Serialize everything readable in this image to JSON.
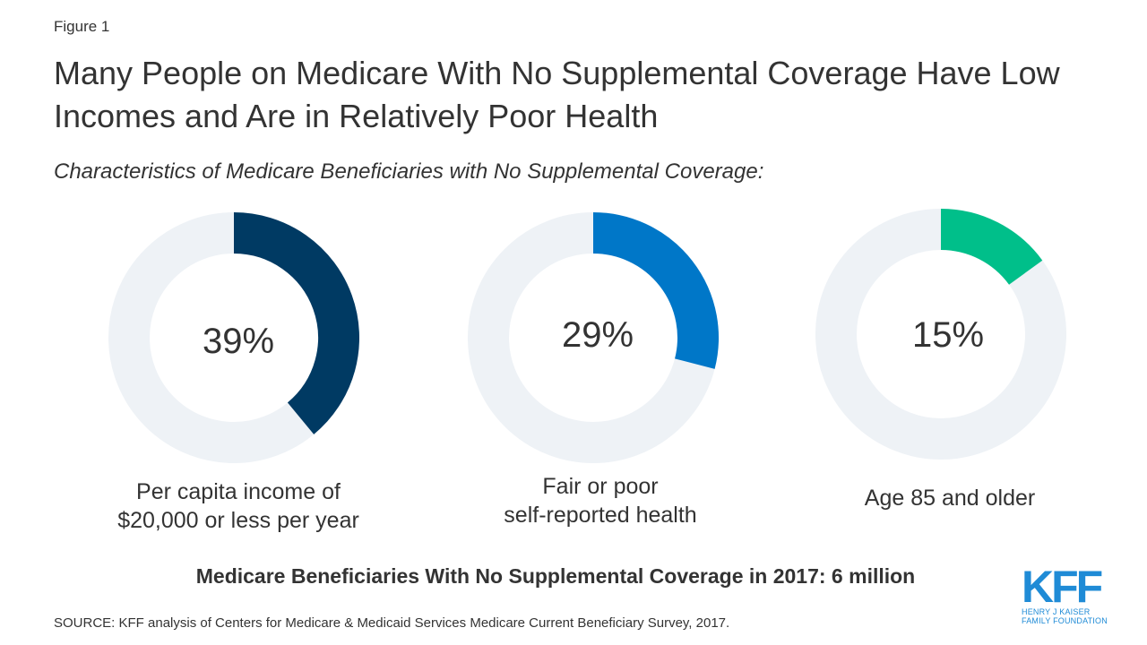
{
  "figure_label": "Figure 1",
  "title": "Many People on Medicare With No Supplemental Coverage Have Low Incomes and Are in Relatively Poor Health",
  "subtitle": "Characteristics of Medicare Beneficiaries with No Supplemental Coverage:",
  "chart_data": [
    {
      "type": "pie",
      "variant": "donut",
      "value": 39,
      "label": "39%",
      "caption_line1": "Per capita income of",
      "caption_line2": "$20,000 or less per year",
      "color": "#003a63",
      "track_color": "#eef2f6"
    },
    {
      "type": "pie",
      "variant": "donut",
      "value": 29,
      "label": "29%",
      "caption_line1": "Fair or poor",
      "caption_line2": "self-reported health",
      "color": "#0077c8",
      "track_color": "#eef2f6"
    },
    {
      "type": "pie",
      "variant": "donut",
      "value": 15,
      "label": "15%",
      "caption_line1": "Age 85 and older",
      "caption_line2": "",
      "color": "#00bf8a",
      "track_color": "#eef2f6"
    }
  ],
  "footer_title": "Medicare Beneficiaries With No Supplemental Coverage in 2017: 6 million",
  "source": "SOURCE: KFF analysis of Centers for Medicare & Medicaid Services Medicare Current Beneficiary Survey, 2017.",
  "logo": {
    "mark": "KFF",
    "line1": "HENRY J KAISER",
    "line2": "FAMILY FOUNDATION",
    "color": "#1f8bd6"
  }
}
